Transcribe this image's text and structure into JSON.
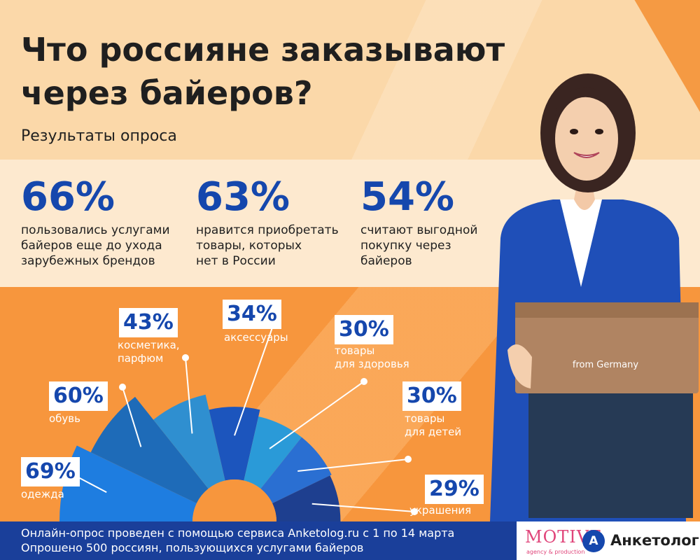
{
  "title": "Что россияне заказывают через байеров?",
  "subtitle": "Результаты опроса",
  "stats": [
    {
      "value": "66%",
      "text": "пользовались услугами\nбайеров еще до ухода\nзарубежных брендов"
    },
    {
      "value": "63%",
      "text": "нравится приобретать\nтовары, которых\nнет в России"
    },
    {
      "value": "54%",
      "text": "считают выгодной\nпокупку через\nбайеров"
    }
  ],
  "chart_data": {
    "type": "bar",
    "categories": [
      "одежда",
      "обувь",
      "косметика,\nпарфюм",
      "аксессуары",
      "товары\nдля здоровья",
      "товары\nдля детей",
      "украшения"
    ],
    "values": [
      69,
      60,
      43,
      34,
      30,
      30,
      29
    ],
    "labels": [
      "69%",
      "60%",
      "43%",
      "34%",
      "30%",
      "30%",
      "29%"
    ],
    "colors": [
      "#1e7de0",
      "#1e6bb8",
      "#2f8fd0",
      "#1c55bd",
      "#2a9ad8",
      "#2a6fd2",
      "#1e3f8f"
    ]
  },
  "illustration": {
    "box_label": "from Germany"
  },
  "footer": {
    "line1": "Онлайн-опрос проведен с помощью сервиса Anketolog.ru с 1 по 14 марта",
    "line2": "Опрошено 500 россиян, пользующихся услугами байеров"
  },
  "logos": {
    "motive": "MOTIVE",
    "motive_sub": "agency & production",
    "anketolog_letter": "A",
    "anketolog": "Анкетолог"
  }
}
